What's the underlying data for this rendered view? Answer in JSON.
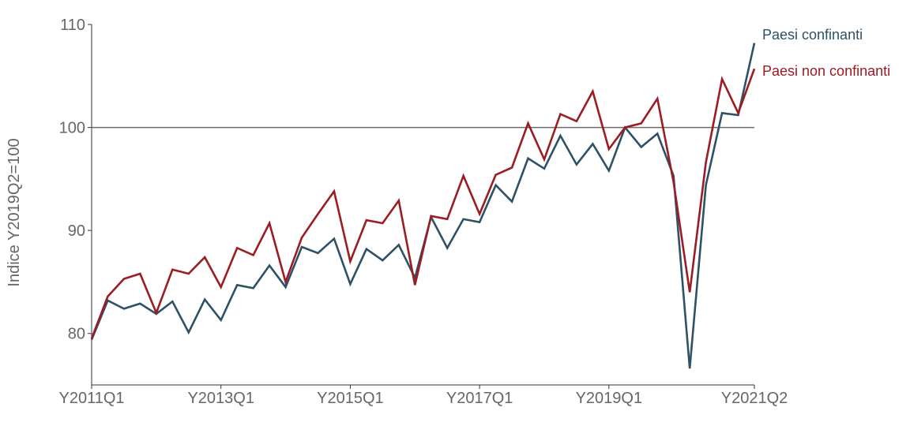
{
  "chart_data": {
    "type": "line",
    "title": "",
    "xlabel": "",
    "ylabel": "Indice Y2019Q2=100",
    "ylim": [
      75,
      110
    ],
    "yticks": [
      80,
      90,
      100,
      110
    ],
    "x_tick_labels": [
      "Y2011Q1",
      "Y2013Q1",
      "Y2015Q1",
      "Y2017Q1",
      "Y2019Q1",
      "Y2021Q2"
    ],
    "reference_line": 100,
    "grid": false,
    "legend": "right, at line ends",
    "x": [
      "Y2011Q1",
      "Y2011Q2",
      "Y2011Q3",
      "Y2011Q4",
      "Y2012Q1",
      "Y2012Q2",
      "Y2012Q3",
      "Y2012Q4",
      "Y2013Q1",
      "Y2013Q2",
      "Y2013Q3",
      "Y2013Q4",
      "Y2014Q1",
      "Y2014Q2",
      "Y2014Q3",
      "Y2014Q4",
      "Y2015Q1",
      "Y2015Q2",
      "Y2015Q3",
      "Y2015Q4",
      "Y2016Q1",
      "Y2016Q2",
      "Y2016Q3",
      "Y2016Q4",
      "Y2017Q1",
      "Y2017Q2",
      "Y2017Q3",
      "Y2017Q4",
      "Y2018Q1",
      "Y2018Q2",
      "Y2018Q3",
      "Y2018Q4",
      "Y2019Q1",
      "Y2019Q2",
      "Y2019Q3",
      "Y2019Q4",
      "Y2020Q1",
      "Y2020Q2",
      "Y2020Q3",
      "Y2020Q4",
      "Y2021Q1",
      "Y2021Q2"
    ],
    "series": [
      {
        "name": "Paesi confinanti",
        "color": "#2e5166",
        "values": [
          79.4,
          83.2,
          82.4,
          82.9,
          81.9,
          83.1,
          80.1,
          83.3,
          81.3,
          84.7,
          84.4,
          86.6,
          84.5,
          88.4,
          87.8,
          89.2,
          84.8,
          88.2,
          87.1,
          88.6,
          85.4,
          91.3,
          88.3,
          91.1,
          90.8,
          94.4,
          92.8,
          97.0,
          96.0,
          99.2,
          96.4,
          98.4,
          95.8,
          100.0,
          98.1,
          99.4,
          95.3,
          76.6,
          94.4,
          101.4,
          101.2,
          108.2
        ]
      },
      {
        "name": "Paesi non confinanti",
        "color": "#9b1c22",
        "values": [
          79.5,
          83.6,
          85.3,
          85.8,
          82.0,
          86.2,
          85.8,
          87.4,
          84.5,
          88.3,
          87.6,
          90.7,
          85.0,
          89.3,
          91.6,
          93.8,
          87.0,
          91.0,
          90.7,
          92.9,
          84.7,
          91.4,
          91.1,
          95.3,
          91.6,
          95.4,
          96.1,
          100.4,
          96.9,
          101.3,
          100.6,
          103.5,
          97.9,
          100.0,
          100.4,
          102.8,
          94.7,
          84.0,
          96.6,
          104.7,
          101.4,
          105.7
        ]
      }
    ]
  }
}
